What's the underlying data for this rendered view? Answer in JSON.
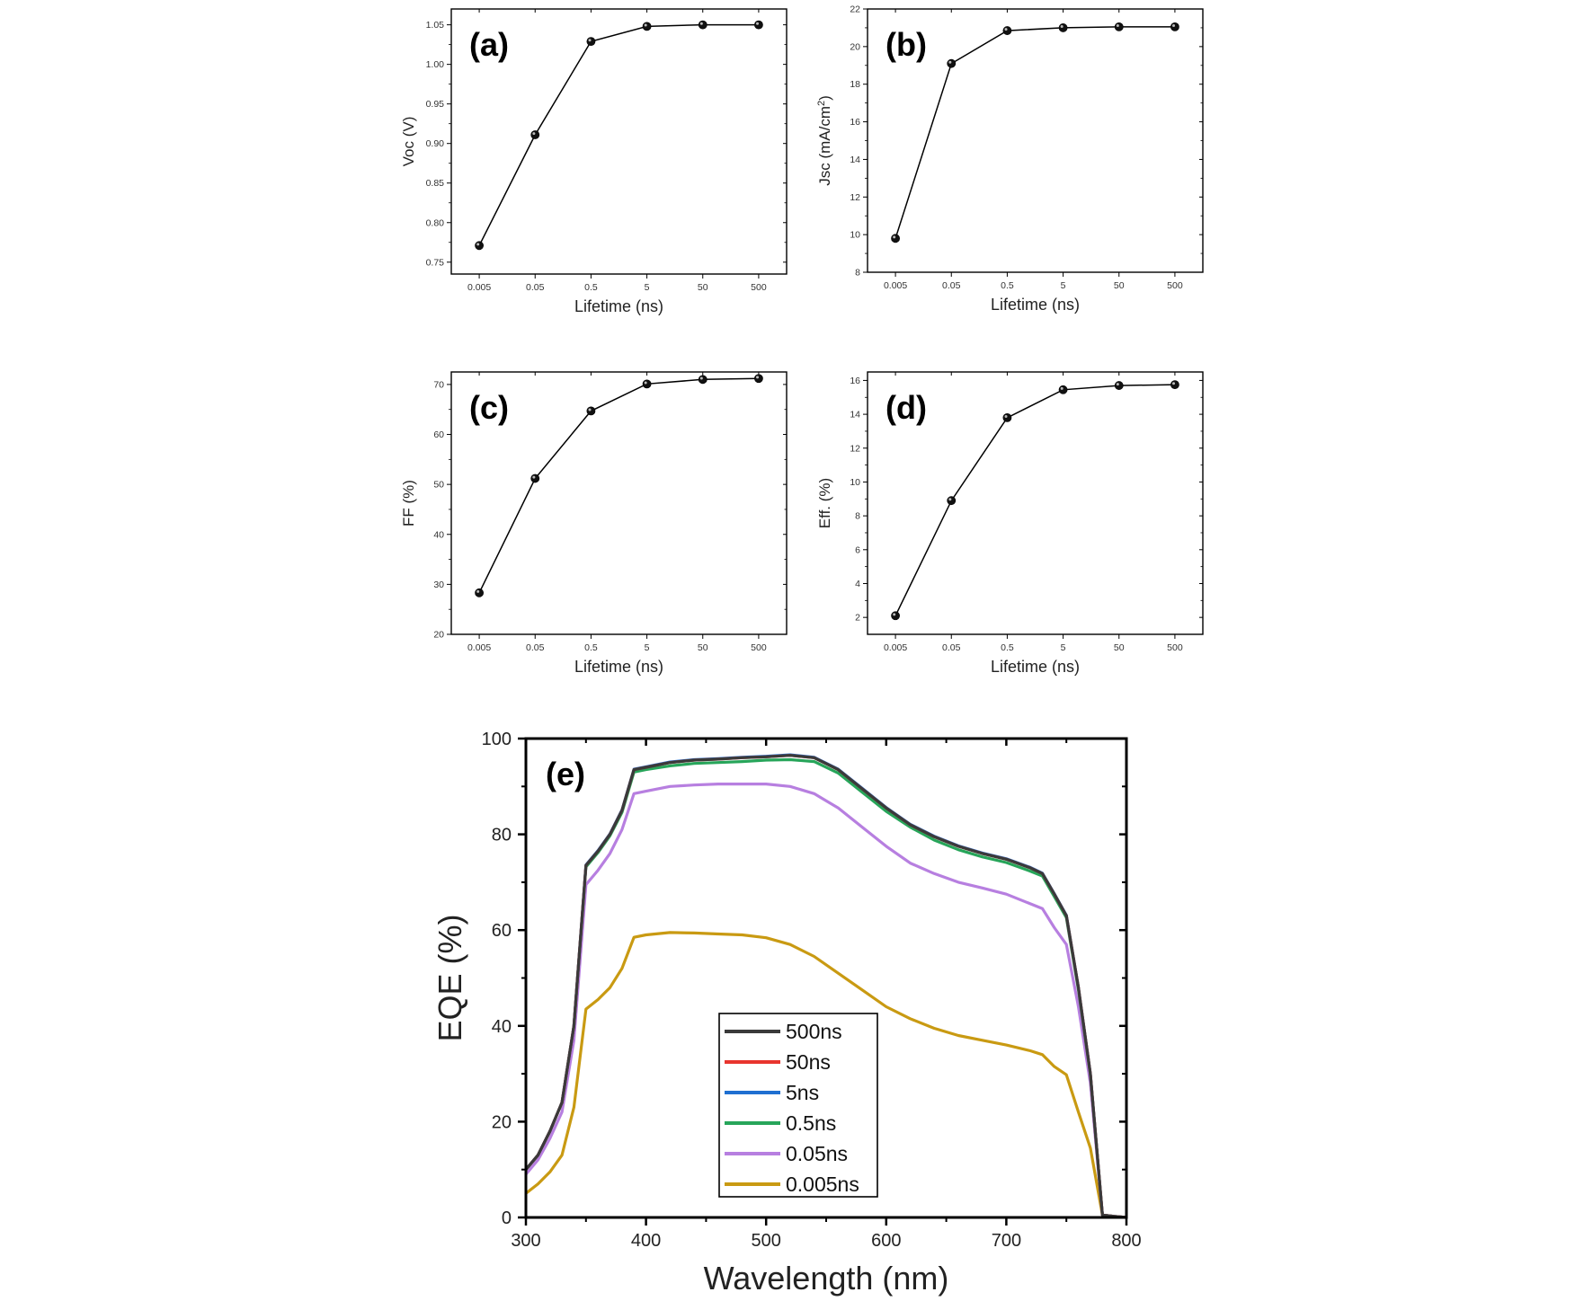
{
  "chart_data": [
    {
      "id": "a",
      "type": "line",
      "panel_label": "(a)",
      "xlabel": "Lifetime (ns)",
      "ylabel": "Voc (V)",
      "categories": [
        "0.005",
        "0.05",
        "0.5",
        "5",
        "50",
        "500"
      ],
      "values": [
        0.771,
        0.911,
        1.029,
        1.048,
        1.05,
        1.05
      ],
      "ylim": [
        0.735,
        1.07
      ],
      "yticks": [
        "0.75",
        "0.80",
        "0.85",
        "0.90",
        "0.95",
        "1.00",
        "1.05"
      ],
      "series_color": "#000000"
    },
    {
      "id": "b",
      "type": "line",
      "panel_label": "(b)",
      "xlabel": "Lifetime (ns)",
      "ylabel": "Jsc (mA/cm",
      "ylabel_sup": "2",
      "ylabel_end": ")",
      "categories": [
        "0.005",
        "0.05",
        "0.5",
        "5",
        "50",
        "500"
      ],
      "values": [
        9.8,
        19.1,
        20.85,
        21.0,
        21.05,
        21.05
      ],
      "ylim": [
        8,
        22
      ],
      "yticks": [
        "8",
        "10",
        "12",
        "14",
        "16",
        "18",
        "20",
        "22"
      ],
      "series_color": "#000000"
    },
    {
      "id": "c",
      "type": "line",
      "panel_label": "(c)",
      "xlabel": "Lifetime (ns)",
      "ylabel": "FF (%)",
      "categories": [
        "0.005",
        "0.05",
        "0.5",
        "5",
        "50",
        "500"
      ],
      "values": [
        28.3,
        51.2,
        64.7,
        70.1,
        71.0,
        71.2
      ],
      "ylim": [
        20,
        72.5
      ],
      "yticks": [
        "20",
        "30",
        "40",
        "50",
        "60",
        "70"
      ],
      "series_color": "#000000"
    },
    {
      "id": "d",
      "type": "line",
      "panel_label": "(d)",
      "xlabel": "Lifetime (ns)",
      "ylabel": "Eff. (%)",
      "categories": [
        "0.005",
        "0.05",
        "0.5",
        "5",
        "50",
        "500"
      ],
      "values": [
        2.1,
        8.9,
        13.8,
        15.45,
        15.7,
        15.75
      ],
      "ylim": [
        1,
        16.5
      ],
      "yticks": [
        "2",
        "4",
        "6",
        "8",
        "10",
        "12",
        "14",
        "16"
      ],
      "series_color": "#000000"
    },
    {
      "id": "e",
      "type": "line",
      "panel_label": "(e)",
      "xlabel": "Wavelength (nm)",
      "ylabel": "EQE (%)",
      "xlim": [
        300,
        800
      ],
      "ylim": [
        0,
        100
      ],
      "xticks": [
        "300",
        "400",
        "500",
        "600",
        "700",
        "800"
      ],
      "yticks": [
        "0",
        "20",
        "40",
        "60",
        "80",
        "100"
      ],
      "legend_position": "bottom-center",
      "series": [
        {
          "name": "500ns",
          "color": "#3a3a3a",
          "x": [
            300,
            310,
            320,
            330,
            340,
            350,
            360,
            370,
            380,
            390,
            400,
            420,
            440,
            460,
            480,
            500,
            520,
            540,
            560,
            580,
            600,
            620,
            640,
            660,
            680,
            700,
            720,
            730,
            740,
            750,
            760,
            770,
            780,
            790,
            800
          ],
          "y": [
            10,
            13,
            18,
            24,
            40,
            73.5,
            76.5,
            80,
            85,
            93.5,
            94,
            95,
            95.5,
            95.7,
            96,
            96.2,
            96.5,
            96,
            93.5,
            89.5,
            85.5,
            82,
            79.5,
            77.5,
            76,
            74.8,
            73,
            71.8,
            67.5,
            63,
            48,
            30,
            0.5,
            0.2,
            0
          ]
        },
        {
          "name": "50ns",
          "color": "#e8352e",
          "x": [
            300,
            310,
            320,
            330,
            340,
            350,
            360,
            370,
            380,
            390,
            400,
            420,
            440,
            460,
            480,
            500,
            520,
            540,
            560,
            580,
            600,
            620,
            640,
            660,
            680,
            700,
            720,
            730,
            740,
            750,
            760,
            770,
            780,
            790,
            800
          ],
          "y": [
            10,
            13,
            18,
            24,
            40,
            73.5,
            76.5,
            80,
            85,
            93.5,
            94,
            95,
            95.5,
            95.7,
            96,
            96.2,
            96.5,
            96,
            93.5,
            89.5,
            85.5,
            82,
            79.5,
            77.5,
            76,
            74.8,
            73,
            71.8,
            67.5,
            63,
            48,
            30,
            0.5,
            0.2,
            0
          ]
        },
        {
          "name": "5ns",
          "color": "#1f6fd1",
          "x": [
            300,
            310,
            320,
            330,
            340,
            350,
            360,
            370,
            380,
            390,
            400,
            420,
            440,
            460,
            480,
            500,
            520,
            540,
            560,
            580,
            600,
            620,
            640,
            660,
            680,
            700,
            720,
            730,
            740,
            750,
            760,
            770,
            780,
            790,
            800
          ],
          "y": [
            10,
            13,
            18,
            24,
            40,
            73.6,
            76.6,
            80.1,
            85.1,
            93.6,
            94.1,
            95.1,
            95.6,
            95.8,
            96.1,
            96.3,
            96.6,
            96.1,
            93.6,
            89.6,
            85.6,
            82.1,
            79.6,
            77.6,
            76.1,
            74.9,
            73.1,
            71.9,
            67.6,
            63.1,
            48,
            30,
            0.5,
            0.2,
            0
          ]
        },
        {
          "name": "0.5ns",
          "color": "#27a55a",
          "x": [
            300,
            310,
            320,
            330,
            340,
            350,
            360,
            370,
            380,
            390,
            400,
            420,
            440,
            460,
            480,
            500,
            520,
            540,
            560,
            580,
            600,
            620,
            640,
            660,
            680,
            700,
            720,
            730,
            740,
            750,
            760,
            770,
            780,
            790,
            800
          ],
          "y": [
            10,
            13,
            18,
            24,
            40,
            73.2,
            76.2,
            79.7,
            84.6,
            93,
            93.5,
            94.3,
            94.8,
            95,
            95.2,
            95.5,
            95.6,
            95.2,
            92.8,
            88.8,
            84.8,
            81.5,
            78.8,
            76.8,
            75.3,
            74.1,
            72.3,
            71.3,
            67,
            62.6,
            47.5,
            29.8,
            0.5,
            0.2,
            0
          ]
        },
        {
          "name": "0.05ns",
          "color": "#b77fe0",
          "x": [
            300,
            310,
            320,
            330,
            340,
            350,
            360,
            370,
            380,
            390,
            400,
            420,
            440,
            460,
            480,
            500,
            520,
            540,
            560,
            580,
            600,
            620,
            640,
            660,
            680,
            700,
            720,
            730,
            740,
            750,
            760,
            770,
            780,
            790,
            800
          ],
          "y": [
            9,
            12,
            16.5,
            22,
            37,
            69.5,
            72.5,
            76,
            81,
            88.5,
            89,
            90,
            90.3,
            90.5,
            90.5,
            90.5,
            90,
            88.5,
            85.5,
            81.5,
            77.5,
            74,
            71.8,
            70,
            68.8,
            67.5,
            65.5,
            64.5,
            60.5,
            57,
            44,
            28,
            0.5,
            0.2,
            0
          ]
        },
        {
          "name": "0.005ns",
          "color": "#c99a12",
          "x": [
            300,
            310,
            320,
            330,
            340,
            350,
            360,
            370,
            380,
            390,
            400,
            420,
            440,
            460,
            480,
            500,
            520,
            540,
            560,
            580,
            600,
            620,
            640,
            660,
            680,
            700,
            720,
            730,
            740,
            750,
            760,
            770,
            780,
            790,
            800
          ],
          "y": [
            5,
            7,
            9.5,
            13,
            23,
            43.5,
            45.5,
            48,
            52,
            58.5,
            59,
            59.5,
            59.4,
            59.2,
            59,
            58.4,
            57,
            54.5,
            51,
            47.5,
            44,
            41.5,
            39.5,
            38,
            37,
            36,
            34.8,
            34,
            31.5,
            29.8,
            22,
            14.5,
            0.5,
            0.2,
            0
          ]
        }
      ]
    }
  ]
}
